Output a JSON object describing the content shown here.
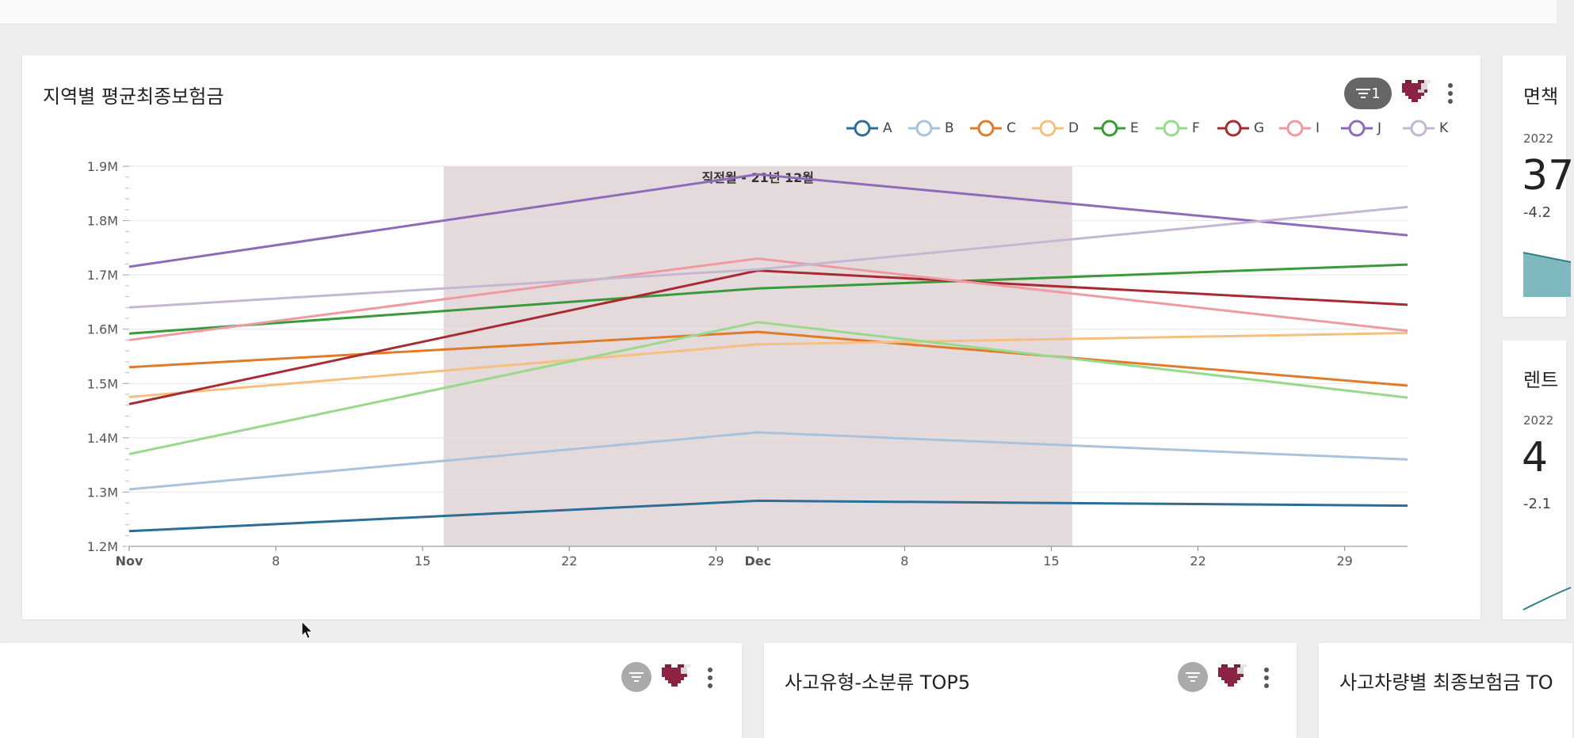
{
  "main_card": {
    "title": "지역별 평균최종보험금",
    "filter_badge": "1",
    "chart_data": {
      "type": "line",
      "title": "",
      "xlabel": "",
      "ylabel": "",
      "ylim": [
        1200000,
        1900000
      ],
      "x_start": "Nov",
      "x_ticks": [
        {
          "label": "Nov",
          "day": 0,
          "bold": true
        },
        {
          "label": "8",
          "day": 7
        },
        {
          "label": "15",
          "day": 14
        },
        {
          "label": "22",
          "day": 21
        },
        {
          "label": "29",
          "day": 28
        },
        {
          "label": "Dec",
          "day": 30,
          "bold": true
        },
        {
          "label": "8",
          "day": 37
        },
        {
          "label": "15",
          "day": 44
        },
        {
          "label": "22",
          "day": 51
        },
        {
          "label": "29",
          "day": 58
        }
      ],
      "x_max_day": 61,
      "y_ticks": [
        {
          "label": "1.2M",
          "value": 1200000
        },
        {
          "label": "1.3M",
          "value": 1300000
        },
        {
          "label": "1.4M",
          "value": 1400000
        },
        {
          "label": "1.5M",
          "value": 1500000
        },
        {
          "label": "1.6M",
          "value": 1600000
        },
        {
          "label": "1.7M",
          "value": 1700000
        },
        {
          "label": "1.8M",
          "value": 1800000
        },
        {
          "label": "1.9M",
          "value": 1900000
        }
      ],
      "points_day": [
        0,
        30,
        61
      ],
      "highlight": {
        "from_day": 15,
        "to_day": 45,
        "label": "직전월 - 21년 12월",
        "color": "#e5dadb"
      },
      "legend_placement": "top-right",
      "series": [
        {
          "name": "A",
          "color": "#2c6e96",
          "values": [
            1228000,
            1284000,
            1275000
          ]
        },
        {
          "name": "B",
          "color": "#a9c2dd",
          "values": [
            1305000,
            1410000,
            1360000
          ]
        },
        {
          "name": "C",
          "color": "#e07b2a",
          "values": [
            1530000,
            1595000,
            1496000
          ]
        },
        {
          "name": "D",
          "color": "#f4bf7f",
          "values": [
            1475000,
            1572000,
            1593000
          ]
        },
        {
          "name": "E",
          "color": "#3a9a3a",
          "values": [
            1592000,
            1675000,
            1719000
          ]
        },
        {
          "name": "F",
          "color": "#98d98b",
          "values": [
            1370000,
            1613000,
            1474000
          ]
        },
        {
          "name": "G",
          "color": "#a82a33",
          "values": [
            1462000,
            1708000,
            1645000
          ]
        },
        {
          "name": "I",
          "color": "#ee9aa1",
          "values": [
            1580000,
            1730000,
            1597000
          ]
        },
        {
          "name": "J",
          "color": "#8e6bb8",
          "values": [
            1715000,
            1885000,
            1773000
          ]
        },
        {
          "name": "K",
          "color": "#c5b7d2",
          "values": [
            1640000,
            1710000,
            1825000
          ]
        }
      ]
    }
  },
  "right_card_1": {
    "title": "면책",
    "date": "2022",
    "value": "37",
    "change": "-4.2"
  },
  "right_card_2": {
    "title": "렌트",
    "date": "2022",
    "value": "4",
    "change": "-2.1"
  },
  "bottom_cards": [
    {
      "title": ""
    },
    {
      "title": "사고유형-소분류 TOP5"
    },
    {
      "title": "사고차량별 최종보험금 TO"
    }
  ],
  "icons": {
    "filter": "filter-icon",
    "heart": "pixel-heart-icon",
    "more": "more-vertical-icon"
  }
}
